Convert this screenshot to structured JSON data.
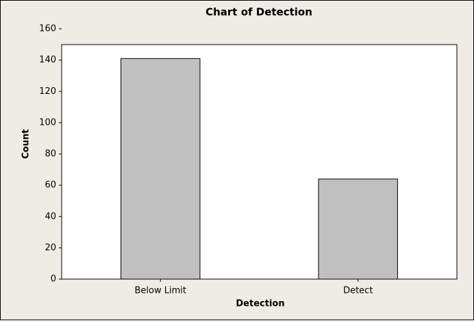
{
  "chart_data": {
    "type": "bar",
    "title": "Chart of Detection",
    "x_label": "Detection",
    "y_label": "Count",
    "categories": [
      "Below Limit",
      "Detect"
    ],
    "values": [
      141,
      64
    ],
    "color": "#c0c0c0",
    "ylim": [
      0,
      160
    ],
    "yticks": [
      0,
      20,
      40,
      60,
      80,
      100,
      120,
      140,
      160
    ],
    "grid": false
  }
}
